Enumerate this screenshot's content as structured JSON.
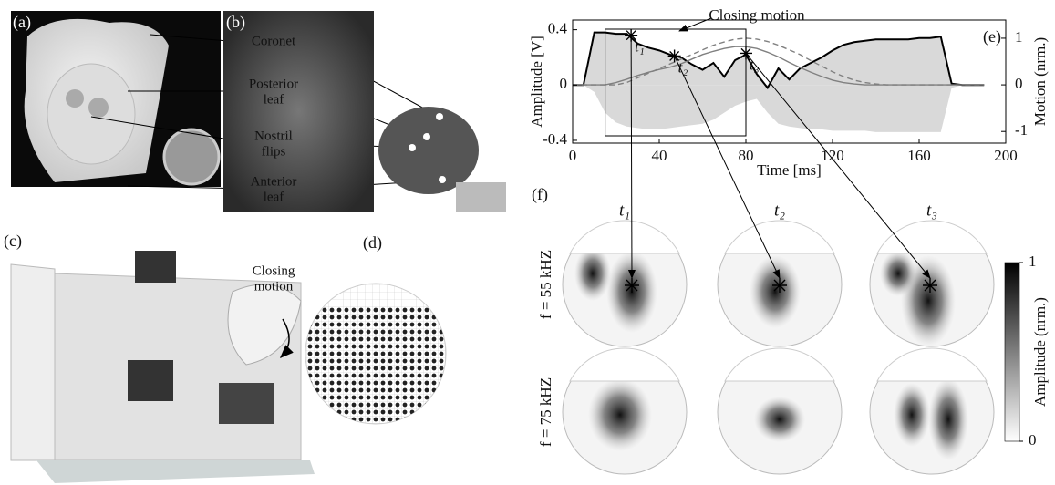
{
  "panels": {
    "a": {
      "label": "(a)",
      "callouts": [
        [
          "Coronet"
        ],
        [
          "Posterior",
          "leaf"
        ],
        [
          "Nostril",
          "flips"
        ],
        [
          "Anterior",
          "leaf"
        ]
      ]
    },
    "b": {
      "label": "(b)"
    },
    "c": {
      "label": "(c)",
      "annotation": [
        "Closing",
        "motion"
      ]
    },
    "d": {
      "label": "(d)"
    },
    "e": {
      "label": "(e)"
    },
    "f": {
      "label": "(f)",
      "columns": [
        "t₁",
        "t₂",
        "t₃"
      ],
      "rows": [
        "f = 55 kHZ",
        "f = 75 kHZ"
      ],
      "colorbar": {
        "label": "Amplitude (nrm.)",
        "lim": [
          0,
          1
        ],
        "ticks": [
          0,
          1
        ]
      }
    }
  },
  "chart_data": {
    "type": "line",
    "annotation": "Closing motion",
    "x_label": "Time [ms]",
    "y_label": "Amplitude [V]",
    "y2_label": "Motion (nrm.)",
    "x": [
      0,
      5,
      10,
      15,
      20,
      25,
      30,
      35,
      40,
      45,
      50,
      55,
      60,
      65,
      70,
      75,
      80,
      85,
      90,
      95,
      100,
      105,
      110,
      115,
      120,
      125,
      130,
      135,
      140,
      145,
      150,
      155,
      160,
      165,
      170,
      175,
      180,
      185,
      190
    ],
    "xlim": [
      0,
      200
    ],
    "xticks": [
      0,
      40,
      80,
      120,
      160,
      200
    ],
    "ylim": [
      -0.42,
      0.47
    ],
    "yticks": [
      -0.4,
      0,
      0.4
    ],
    "y2lim": [
      -1.25,
      1.39
    ],
    "y2ticks": [
      -1,
      0,
      1
    ],
    "series": [
      {
        "color": "#000000",
        "area": "#d9d9d9",
        "values": [
          0,
          0,
          0.38,
          0.38,
          0.37,
          0.37,
          0.3,
          0.27,
          0.25,
          0.22,
          0.2,
          0.15,
          0.11,
          0.16,
          0.06,
          0.18,
          0.22,
          0.08,
          -0.02,
          0.12,
          0.04,
          0.12,
          0.16,
          0.2,
          0.25,
          0.29,
          0.31,
          0.32,
          0.33,
          0.33,
          0.33,
          0.33,
          0.34,
          0.34,
          0.35,
          0.01,
          0,
          0,
          0
        ]
      },
      {
        "color": null,
        "area": "#d9d9d9",
        "values": [
          0,
          0,
          -0.05,
          -0.2,
          -0.27,
          -0.3,
          -0.31,
          -0.32,
          -0.32,
          -0.31,
          -0.3,
          -0.29,
          -0.28,
          -0.25,
          -0.2,
          -0.15,
          -0.12,
          -0.1,
          -0.2,
          -0.28,
          -0.3,
          -0.31,
          -0.32,
          -0.32,
          -0.33,
          -0.33,
          -0.33,
          -0.33,
          -0.34,
          -0.34,
          -0.34,
          -0.34,
          -0.34,
          -0.34,
          -0.34,
          -0.02,
          0,
          0,
          0
        ]
      },
      {
        "color": "#808080",
        "axis": "y2",
        "values": [
          0,
          0,
          0,
          0,
          0.05,
          0.12,
          0.2,
          0.27,
          0.33,
          0.38,
          0.45,
          0.55,
          0.65,
          0.72,
          0.78,
          0.82,
          0.82,
          0.78,
          0.7,
          0.6,
          0.48,
          0.37,
          0.27,
          0.18,
          0.1,
          0.05,
          0.02,
          0,
          0,
          0,
          0,
          0,
          0,
          0,
          0,
          0,
          0,
          0,
          0
        ]
      },
      {
        "color": "#808080",
        "axis": "y2",
        "dashed": true,
        "values": [
          0,
          0,
          0,
          0,
          0,
          0.05,
          0.15,
          0.25,
          0.35,
          0.45,
          0.55,
          0.65,
          0.75,
          0.85,
          0.92,
          0.98,
          1,
          0.98,
          0.93,
          0.85,
          0.75,
          0.65,
          0.52,
          0.4,
          0.28,
          0.18,
          0.1,
          0.05,
          0.02,
          0,
          0,
          0,
          0,
          0,
          0,
          0,
          0,
          0,
          0
        ]
      }
    ],
    "markers": [
      {
        "x": 27,
        "y": 0.36,
        "label": "t₁"
      },
      {
        "x": 47,
        "y": 0.21,
        "label": "t₂"
      },
      {
        "x": 80,
        "y": 0.23,
        "label": "t₃"
      }
    ]
  }
}
